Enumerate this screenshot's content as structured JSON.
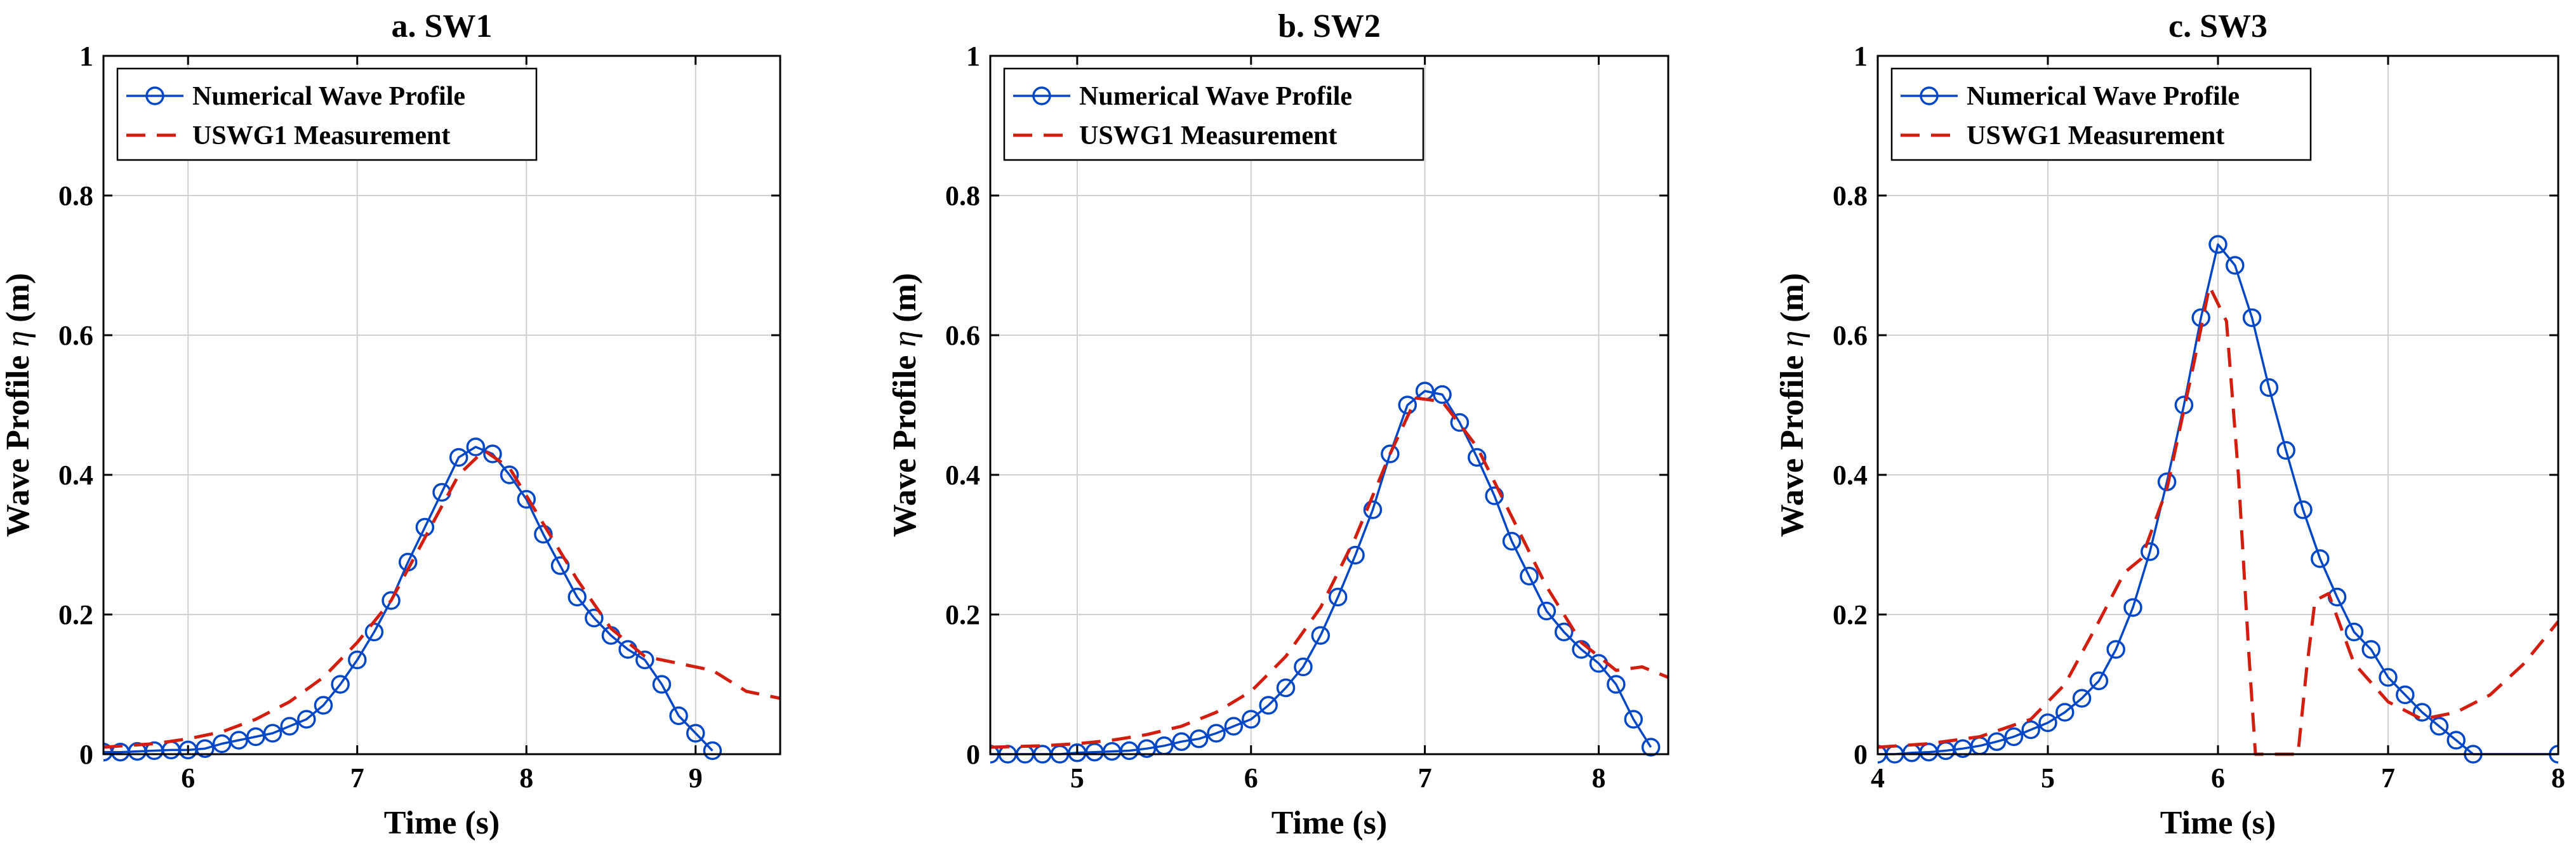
{
  "colors": {
    "numerical": "#0047c8",
    "measurement": "#d21e0f",
    "grid": "#d0d0d0",
    "axis": "#000000"
  },
  "chart_data": [
    {
      "type": "line",
      "title": "a. SW1",
      "xlabel": "Time (s)",
      "ylabel_prefix": "Wave Profile ",
      "ylabel_symbol": "η",
      "ylabel_unit": " (m)",
      "xlim": [
        5.5,
        9.5
      ],
      "ylim": [
        0,
        1
      ],
      "xticks": [
        6,
        7,
        8,
        9
      ],
      "yticks": [
        0,
        0.2,
        0.4,
        0.6,
        0.8,
        1
      ],
      "ytick_labels": [
        "0",
        "0.2",
        "0.4",
        "0.6",
        "0.8",
        "1"
      ],
      "grid": true,
      "legend_position": "top-left",
      "series": [
        {
          "name": "Numerical Wave Profile",
          "style": "solid-circle",
          "x": [
            5.5,
            5.6,
            5.7,
            5.8,
            5.9,
            6.0,
            6.1,
            6.2,
            6.3,
            6.4,
            6.5,
            6.6,
            6.7,
            6.8,
            6.9,
            7.0,
            7.1,
            7.2,
            7.3,
            7.4,
            7.5,
            7.6,
            7.7,
            7.8,
            7.9,
            8.0,
            8.1,
            8.2,
            8.3,
            8.4,
            8.5,
            8.6,
            8.7,
            8.8,
            8.9,
            9.0,
            9.1
          ],
          "y": [
            0.003,
            0.003,
            0.004,
            0.005,
            0.006,
            0.006,
            0.008,
            0.015,
            0.02,
            0.025,
            0.03,
            0.04,
            0.05,
            0.07,
            0.1,
            0.135,
            0.175,
            0.22,
            0.275,
            0.325,
            0.375,
            0.425,
            0.44,
            0.43,
            0.4,
            0.365,
            0.315,
            0.27,
            0.225,
            0.195,
            0.17,
            0.15,
            0.135,
            0.1,
            0.055,
            0.03,
            0.005
          ]
        },
        {
          "name": "USWG1 Measurement",
          "style": "dashed",
          "x": [
            5.5,
            5.8,
            6.0,
            6.2,
            6.4,
            6.6,
            6.8,
            7.0,
            7.2,
            7.4,
            7.6,
            7.75,
            7.9,
            8.1,
            8.3,
            8.5,
            8.7,
            8.9,
            9.1,
            9.3,
            9.5
          ],
          "y": [
            0.01,
            0.015,
            0.022,
            0.032,
            0.05,
            0.075,
            0.11,
            0.16,
            0.22,
            0.31,
            0.4,
            0.435,
            0.41,
            0.33,
            0.25,
            0.18,
            0.14,
            0.13,
            0.12,
            0.09,
            0.08
          ]
        }
      ]
    },
    {
      "type": "line",
      "title": "b. SW2",
      "xlabel": "Time (s)",
      "ylabel_prefix": "Wave Profile ",
      "ylabel_symbol": "η",
      "ylabel_unit": " (m)",
      "xlim": [
        4.5,
        8.4
      ],
      "ylim": [
        0,
        1
      ],
      "xticks": [
        5,
        6,
        7,
        8
      ],
      "yticks": [
        0,
        0.2,
        0.4,
        0.6,
        0.8,
        1
      ],
      "ytick_labels": [
        "0",
        "0.2",
        "0.4",
        "0.6",
        "0.8",
        "1"
      ],
      "grid": true,
      "legend_position": "top-left",
      "series": [
        {
          "name": "Numerical Wave Profile",
          "style": "solid-circle",
          "x": [
            4.5,
            4.6,
            4.7,
            4.8,
            4.9,
            5.0,
            5.1,
            5.2,
            5.3,
            5.4,
            5.5,
            5.6,
            5.7,
            5.8,
            5.9,
            6.0,
            6.1,
            6.2,
            6.3,
            6.4,
            6.5,
            6.6,
            6.7,
            6.8,
            6.9,
            7.0,
            7.1,
            7.2,
            7.3,
            7.4,
            7.5,
            7.6,
            7.7,
            7.8,
            7.9,
            8.0,
            8.1,
            8.2,
            8.3
          ],
          "y": [
            0.0,
            0.0,
            0.0,
            0.0,
            0.0,
            0.002,
            0.003,
            0.004,
            0.005,
            0.008,
            0.012,
            0.018,
            0.022,
            0.03,
            0.04,
            0.05,
            0.07,
            0.095,
            0.125,
            0.17,
            0.225,
            0.285,
            0.35,
            0.43,
            0.5,
            0.52,
            0.515,
            0.475,
            0.425,
            0.37,
            0.305,
            0.255,
            0.205,
            0.175,
            0.15,
            0.13,
            0.1,
            0.05,
            0.01
          ]
        },
        {
          "name": "USWG1 Measurement",
          "style": "dashed",
          "x": [
            4.5,
            4.8,
            5.0,
            5.2,
            5.4,
            5.6,
            5.8,
            6.0,
            6.2,
            6.4,
            6.6,
            6.8,
            6.95,
            7.1,
            7.3,
            7.5,
            7.7,
            7.9,
            8.1,
            8.25,
            8.4
          ],
          "y": [
            0.01,
            0.012,
            0.015,
            0.02,
            0.028,
            0.04,
            0.06,
            0.09,
            0.14,
            0.21,
            0.31,
            0.43,
            0.51,
            0.505,
            0.44,
            0.34,
            0.24,
            0.16,
            0.12,
            0.125,
            0.11
          ]
        }
      ]
    },
    {
      "type": "line",
      "title": "c. SW3",
      "xlabel": "Time (s)",
      "ylabel_prefix": "Wave Profile ",
      "ylabel_symbol": "η",
      "ylabel_unit": " (m)",
      "xlim": [
        4,
        8
      ],
      "ylim": [
        0,
        1
      ],
      "xticks": [
        4,
        5,
        6,
        7,
        8
      ],
      "yticks": [
        0,
        0.2,
        0.4,
        0.6,
        0.8,
        1
      ],
      "ytick_labels": [
        "0",
        "0.2",
        "0.4",
        "0.6",
        "0.8",
        "1"
      ],
      "grid": true,
      "legend_position": "top-left",
      "series": [
        {
          "name": "Numerical Wave Profile",
          "style": "solid-circle",
          "x": [
            4.0,
            4.1,
            4.2,
            4.3,
            4.4,
            4.5,
            4.6,
            4.7,
            4.8,
            4.9,
            5.0,
            5.1,
            5.2,
            5.3,
            5.4,
            5.5,
            5.6,
            5.7,
            5.8,
            5.9,
            6.0,
            6.1,
            6.2,
            6.3,
            6.4,
            6.5,
            6.6,
            6.7,
            6.8,
            6.9,
            7.0,
            7.1,
            7.2,
            7.3,
            7.4,
            7.5,
            8.0
          ],
          "y": [
            0.0,
            0.0,
            0.002,
            0.003,
            0.005,
            0.008,
            0.012,
            0.018,
            0.025,
            0.035,
            0.045,
            0.06,
            0.08,
            0.105,
            0.15,
            0.21,
            0.29,
            0.39,
            0.5,
            0.625,
            0.73,
            0.7,
            0.625,
            0.525,
            0.435,
            0.35,
            0.28,
            0.225,
            0.175,
            0.15,
            0.11,
            0.085,
            0.06,
            0.04,
            0.02,
            0.0,
            0.0
          ]
        },
        {
          "name": "USWG1 Measurement",
          "style": "dashed",
          "x": [
            4.0,
            4.3,
            4.6,
            4.9,
            5.1,
            5.3,
            5.45,
            5.55,
            5.7,
            5.85,
            5.95,
            6.05,
            6.12,
            6.18,
            6.22,
            6.47,
            6.52,
            6.57,
            6.65,
            6.8,
            7.0,
            7.2,
            7.4,
            7.6,
            7.8,
            8.0
          ],
          "y": [
            0.01,
            0.015,
            0.025,
            0.05,
            0.1,
            0.19,
            0.26,
            0.28,
            0.38,
            0.55,
            0.67,
            0.62,
            0.4,
            0.15,
            0.0,
            0.0,
            0.12,
            0.22,
            0.23,
            0.13,
            0.075,
            0.05,
            0.06,
            0.085,
            0.13,
            0.19
          ]
        }
      ]
    }
  ]
}
